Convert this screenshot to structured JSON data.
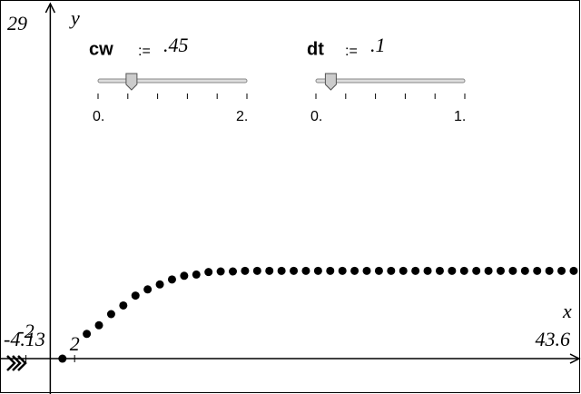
{
  "chart_data": {
    "type": "scatter",
    "x": [
      1,
      3,
      4,
      5,
      6,
      7,
      8,
      9,
      10,
      11,
      12,
      13,
      14,
      15,
      16,
      17,
      18,
      19,
      20,
      21,
      22,
      23,
      24,
      25,
      26,
      27,
      28,
      29,
      30,
      31,
      32,
      33,
      34,
      35,
      36,
      37,
      38,
      39,
      40,
      41,
      42,
      43
    ],
    "values": [
      0,
      2.0,
      2.7,
      3.6,
      4.3,
      5.1,
      5.6,
      6.0,
      6.4,
      6.7,
      6.8,
      7.0,
      7.05,
      7.05,
      7.1,
      7.1,
      7.1,
      7.1,
      7.1,
      7.1,
      7.1,
      7.1,
      7.1,
      7.1,
      7.1,
      7.1,
      7.1,
      7.1,
      7.1,
      7.1,
      7.1,
      7.1,
      7.1,
      7.1,
      7.1,
      7.1,
      7.1,
      7.1,
      7.1,
      7.1,
      7.1,
      7.1
    ],
    "color": "#000000",
    "x_label": "x",
    "y_label": "y",
    "xlim": [
      -4.13,
      43.6
    ],
    "xlim_labels": [
      "-4.13",
      "43.6"
    ],
    "ylim": [
      -2.86,
      29
    ],
    "ymax_label": "29",
    "xticks": [
      -2,
      2
    ]
  },
  "sliders": [
    {
      "name": "cw",
      "assign": ":=",
      "value": 0.45,
      "value_label": ".45",
      "min": 0,
      "min_label": "0.",
      "max": 2,
      "max_label": "2."
    },
    {
      "name": "dt",
      "assign": ":=",
      "value": 0.1,
      "value_label": ".1",
      "min": 0,
      "min_label": "0.",
      "max": 1,
      "max_label": "1."
    }
  ]
}
